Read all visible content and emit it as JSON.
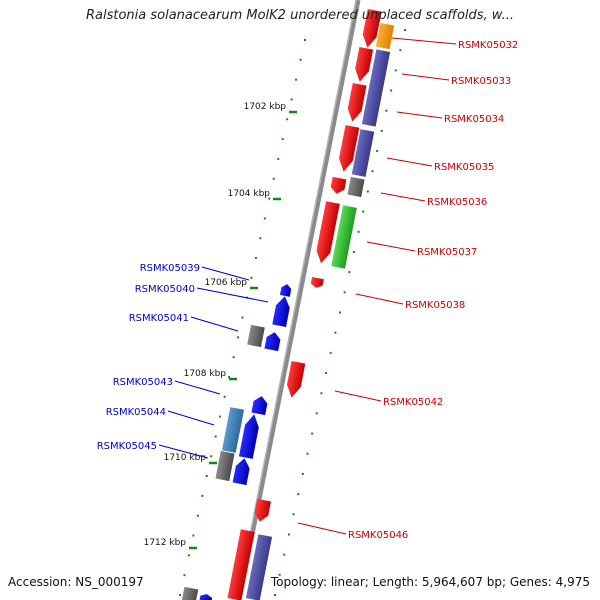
{
  "title": "Ralstonia solanacearum MolK2 unordered unplaced scaffolds, w...",
  "accession": "Accession: NS_000197",
  "footer": "Topology: linear; Length: 5,964,607 bp; Genes: 4,975",
  "ticks": [
    "1702 kbp",
    "1704 kbp",
    "1706 kbp",
    "1708 kbp",
    "1710 kbp",
    "1712 kbp"
  ],
  "genes_right": [
    "RSMK05032",
    "RSMK05033",
    "RSMK05034",
    "RSMK05035",
    "RSMK05036",
    "RSMK05037",
    "RSMK05038",
    "RSMK05042",
    "RSMK05046"
  ],
  "genes_left": [
    "RSMK05039",
    "RSMK05040",
    "RSMK05041",
    "RSMK05043",
    "RSMK05044",
    "RSMK05045"
  ],
  "colors": {
    "forward": "#ee0000",
    "reverse": "#0000ee",
    "right_label": "#cc0000",
    "left_label": "#0000cc",
    "tick": "#118811",
    "purple": "#4a4aa0",
    "orange": "#ff9900",
    "green": "#33bb33",
    "gray": "#666666",
    "steel": "#4a86b8"
  }
}
